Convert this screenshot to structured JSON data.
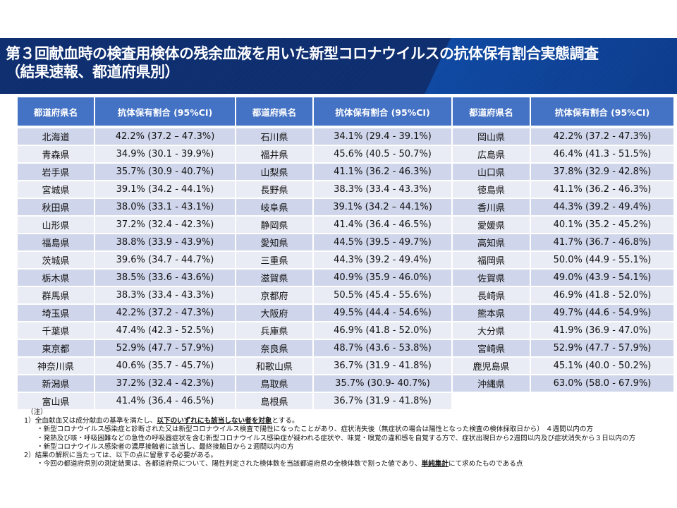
{
  "title": {
    "line1": "第３回献血時の検査用検体の残余血液を用いた新型コロナウイルスの抗体保有割合実態調査",
    "line2": "（結果速報、都道府県別）"
  },
  "table": {
    "headers": [
      "都道府県名",
      "抗体保有割合 (95%CI)",
      "都道府県名",
      "抗体保有割合 (95%CI)",
      "都道府県名",
      "抗体保有割合 (95%CI)"
    ],
    "rows": [
      [
        "北海道",
        "42.2% (37.2 – 47.3%)",
        "石川県",
        "34.1% (29.4 - 39.1%)",
        "岡山県",
        "42.2% (37.2 - 47.3%)"
      ],
      [
        "青森県",
        "34.9% (30.1 - 39.9%)",
        "福井県",
        "45.6% (40.5 - 50.7%)",
        "広島県",
        "46.4% (41.3 - 51.5%)"
      ],
      [
        "岩手県",
        "35.7% (30.9 - 40.7%)",
        "山梨県",
        "41.1% (36.2 - 46.3%)",
        "山口県",
        "37.8% (32.9 - 42.8%)"
      ],
      [
        "宮城県",
        "39.1% (34.2 - 44.1%)",
        "長野県",
        "38.3% (33.4 - 43.3%)",
        "徳島県",
        "41.1% (36.2 - 46.3%)"
      ],
      [
        "秋田県",
        "38.0% (33.1 - 43.1%)",
        "岐阜県",
        "39.1% (34.2 – 44.1%)",
        "香川県",
        "44.3% (39.2 - 49.4%)"
      ],
      [
        "山形県",
        "37.2% (32.4 - 42.3%)",
        "静岡県",
        "41.4% (36.4 - 46.5%)",
        "愛媛県",
        "40.1% (35.2 - 45.2%)"
      ],
      [
        "福島県",
        "38.8% (33.9 - 43.9%)",
        "愛知県",
        "44.5% (39.5 - 49.7%)",
        "高知県",
        "41.7% (36.7 - 46.8%)"
      ],
      [
        "茨城県",
        "39.6% (34.7 - 44.7%)",
        "三重県",
        "44.3% (39.2 - 49.4%)",
        "福岡県",
        "50.0% (44.9 - 55.1%)"
      ],
      [
        "栃木県",
        "38.5% (33.6 - 43.6%)",
        "滋賀県",
        "40.9% (35.9 - 46.0%)",
        "佐賀県",
        "49.0% (43.9 - 54.1%)"
      ],
      [
        "群馬県",
        "38.3% (33.4 - 43.3%)",
        "京都府",
        "50.5% (45.4 - 55.6%)",
        "長崎県",
        "46.9% (41.8 - 52.0%)"
      ],
      [
        "埼玉県",
        "42.2% (37.2 - 47.3%)",
        "大阪府",
        "49.5% (44.4 - 54.6%)",
        "熊本県",
        "49.7% (44.6 - 54.9%)"
      ],
      [
        "千葉県",
        "47.4% (42.3 - 52.5%)",
        "兵庫県",
        "46.9% (41.8 - 52.0%)",
        "大分県",
        "41.9% (36.9 - 47.0%)"
      ],
      [
        "東京都",
        "52.9% (47.7 - 57.9%)",
        "奈良県",
        "48.7% (43.6 - 53.8%)",
        "宮崎県",
        "52.9% (47.7 - 57.9%)"
      ],
      [
        "神奈川県",
        "40.6% (35.7 - 45.7%)",
        "和歌山県",
        "36.7% (31.9 - 41.8%)",
        "鹿児島県",
        "45.1% (40.0 - 50.2%)"
      ],
      [
        "新潟県",
        "37.2% (32.4 - 42.3%)",
        "鳥取県",
        "35.7% (30.9- 40.7%)",
        "沖縄県",
        "63.0% (58.0 - 67.9%)"
      ],
      [
        "富山県",
        "41.4% (36.4 - 46.5%)",
        "島根県",
        "36.7% (31.9 - 41.8%)",
        "",
        ""
      ]
    ]
  },
  "notes": {
    "label": "（注）",
    "n1_prefix": "1）全血献血又は成分献血の基準を満たし、",
    "n1_emphasis": "以下のいずれにも該当しない者を対象",
    "n1_suffix": "とする。",
    "n1_items": [
      "・新型コロナウイルス感染症と診断された又は新型コロナウイルス検査で陽性になったことがあり、症状消失後（無症状の場合は陽性となった検査の検体採取日から） ４週間以内の方",
      "・発熱及び咳・呼吸困難などの急性の呼吸器症状を含む新型コロナウイルス感染症が疑われる症状や、味覚・嗅覚の違和感を自覚する方で、症状出現日から2週間以内及び症状消失から３日以内の方",
      "・新型コロナウイルス感染者の濃厚接触者に該当し、最終接触日から２週間以内の方"
    ],
    "n2": "2）結果の解釈に当たっては、以下の点に留意する必要がある。",
    "n2_item_prefix": "・今回の都道府県別の測定結果は、各都道府県について、陽性判定された検体数を当該都道府県の全検体数で割った値であり、",
    "n2_item_emphasis": "単純集計",
    "n2_item_suffix": "にて求めたものである点"
  },
  "colors": {
    "banner": "#0b2c6e",
    "header": "#4472c4",
    "row_odd": "#cfd5ea",
    "row_even": "#e9ebf5"
  }
}
